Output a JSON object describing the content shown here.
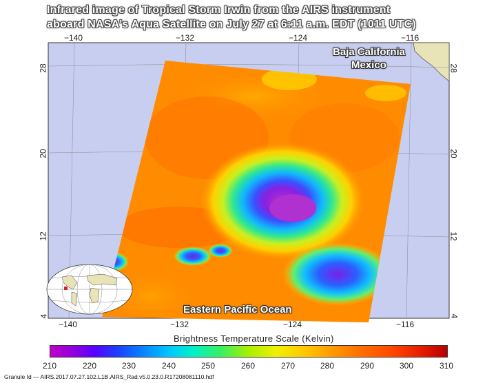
{
  "title": {
    "line1": "Infrared image of Tropical Storm Irwin from the AIRS instrument",
    "line2": "aboard NASA's Aqua Satellite on July 27 at 6:11 a.m. EDT (1011 UTC)"
  },
  "labels": {
    "region_line1": "Baja California",
    "region_line2": "Mexico",
    "ocean": "Eastern Pacific Ocean"
  },
  "longitude_ticks": [
    "−140",
    "−132",
    "−124",
    "−116"
  ],
  "latitude_ticks": [
    "28",
    "20",
    "12",
    "4"
  ],
  "colorbar": {
    "title": "Brightness Temperature Scale (Kelvin)",
    "ticks": [
      "210",
      "220",
      "230",
      "240",
      "250",
      "260",
      "270",
      "280",
      "290",
      "300",
      "310"
    ],
    "range": [
      210,
      310
    ]
  },
  "footer": "Granule Id — AIRS.2017.07.27.102.L1B.AIRS_Rad.v5.0.23.0.R17208081110.hdf",
  "colors": {
    "ocean": "#c8cef0",
    "land": "#e8e4b8",
    "storm_core": "#a020c8",
    "background_cloud": "#ff8c00"
  }
}
